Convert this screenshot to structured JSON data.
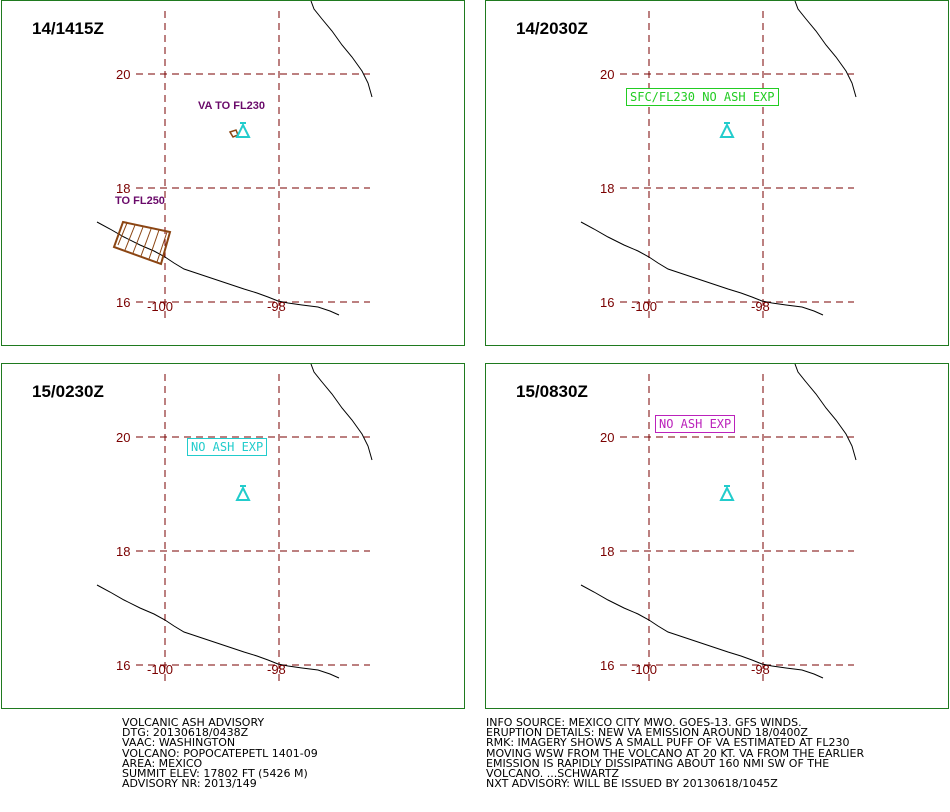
{
  "panels": [
    {
      "time": "14/1415Z",
      "labels": [
        "VA TO FL230",
        "TO FL250"
      ],
      "box_label": null
    },
    {
      "time": "14/2030Z",
      "labels": [],
      "box_label": "SFC/FL230 NO ASH EXP",
      "box_color": "#22cc22"
    },
    {
      "time": "15/0230Z",
      "labels": [],
      "box_label": "NO ASH EXP",
      "box_color": "#22cccc"
    },
    {
      "time": "15/0830Z",
      "labels": [],
      "box_label": "NO ASH EXP",
      "box_color": "#bb22bb"
    }
  ],
  "grid": {
    "lat_labels": [
      "20",
      "18",
      "16"
    ],
    "lon_labels": [
      "-100",
      "-98"
    ]
  },
  "colors": {
    "grid": "#7a0000",
    "volcano": "#22cccc",
    "ash_outline": "#8b4513",
    "coast": "#000000",
    "border": "#1f7a1f"
  },
  "volcano_icon": "volcano-triangle-icon",
  "advisory_left": [
    "VOLCANIC ASH ADVISORY",
    "DTG: 20130618/0438Z",
    "VAAC: WASHINGTON",
    "VOLCANO: POPOCATEPETL 1401-09",
    "AREA: MEXICO",
    "SUMMIT ELEV: 17802 FT (5426 M)",
    "ADVISORY NR: 2013/149"
  ],
  "advisory_right": [
    "INFO SOURCE: MEXICO CITY MWO. GOES-13. GFS WINDS.",
    "ERUPTION DETAILS: NEW VA EMISSION AROUND 18/0400Z",
    "RMK: IMAGERY SHOWS A SMALL PUFF OF VA ESTIMATED AT FL230",
    "MOVING WSW FROM THE VOLCANO AT 20 KT. VA FROM THE EARLIER",
    "EMISSION IS RAPIDLY DISSIPATING ABOUT 160 NMI SW OF THE",
    "VOLCANO. ...SCHWARTZ",
    "NXT ADVISORY: WILL BE ISSUED BY 20130618/1045Z"
  ]
}
